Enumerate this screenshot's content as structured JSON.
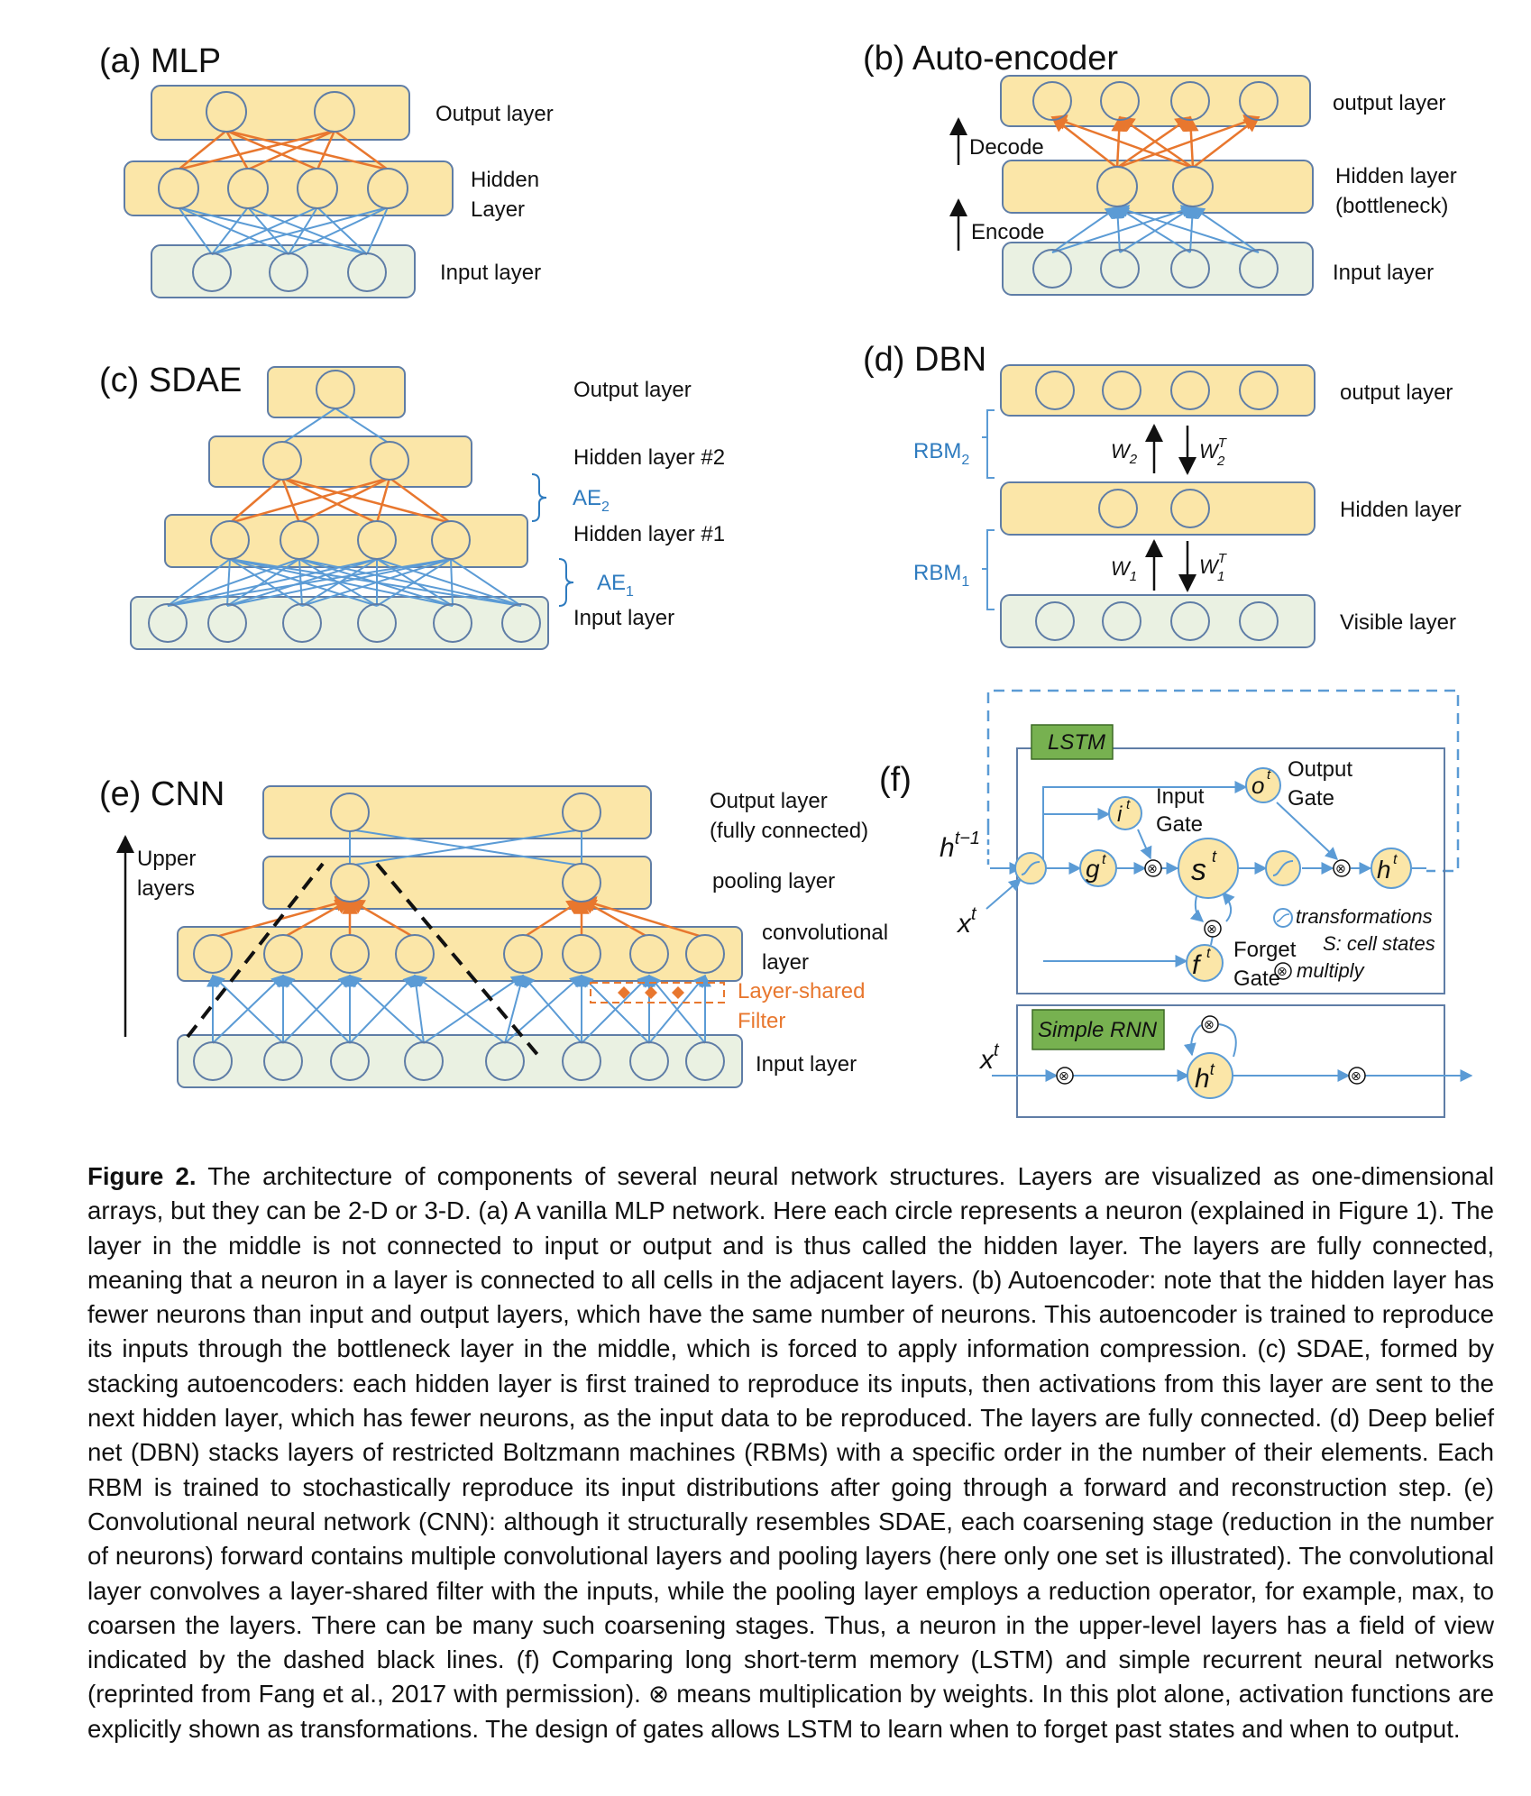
{
  "panels": {
    "a": {
      "title": "(a) MLP",
      "output": "Output layer",
      "hidden1": "Hidden",
      "hidden2": "Layer",
      "input": "Input layer"
    },
    "b": {
      "title": "(b) Auto-encoder",
      "output": "output layer",
      "hidden1": "Hidden layer",
      "hidden2": "(bottleneck)",
      "input": "Input layer",
      "decode": "Decode",
      "encode": "Encode"
    },
    "c": {
      "title": "(c)  SDAE",
      "output": "Output layer",
      "hidden2": "Hidden layer #2",
      "hidden1": "Hidden layer #1",
      "input": "Input layer",
      "ae2": "AE",
      "ae2_sub": "2",
      "ae1": "AE",
      "ae1_sub": "1"
    },
    "d": {
      "title": "(d) DBN",
      "output": "output layer",
      "hidden": "Hidden layer",
      "visible": "Visible layer",
      "rbm2": "RBM",
      "rbm2_sub": "2",
      "rbm1": "RBM",
      "rbm1_sub": "1",
      "w2": "W",
      "w2_sub": "2",
      "w2t": "W",
      "w2t_sub": "2",
      "w2t_sup": "T",
      "w1": "W",
      "w1_sub": "1",
      "w1t": "W",
      "w1t_sub": "1",
      "w1t_sup": "T"
    },
    "e": {
      "title": "(e)  CNN",
      "output1": "Output layer",
      "output2": "(fully connected)",
      "pooling": "pooling layer",
      "conv1": "convolutional",
      "conv2": "layer",
      "filter1": "Layer-shared",
      "filter2": "Filter",
      "input": "Input layer",
      "upper1": "Upper",
      "upper2": "layers"
    },
    "f": {
      "title": "(f)",
      "lstm": "LSTM",
      "rnn": "Simple RNN",
      "input_gate1": "Input",
      "input_gate2": "Gate",
      "output_gate1": "Output",
      "output_gate2": "Gate",
      "forget_gate1": "Forget",
      "forget_gate2": "Gate",
      "legend_transform": "transformations",
      "legend_cell": "S: cell states",
      "legend_multiply": "multiply",
      "h_prev": "h",
      "h_prev_sup": "t−1",
      "x": "x",
      "x_sup": "t",
      "h": "h",
      "h_sup": "t",
      "i": "i",
      "o": "o",
      "g": "g",
      "s": "s",
      "f": "f",
      "sup_t": "t",
      "mult": "⊗"
    }
  },
  "caption": {
    "label": "Figure 2.",
    "text": " The architecture of components of several neural network structures. Layers are visualized as one-dimensional arrays, but they can be 2-D or 3-D. (a) A vanilla MLP network. Here each circle represents a neuron (explained in Figure 1). The layer in the middle is not connected to input or output and is thus called the hidden layer. The layers are fully connected, meaning that a neuron in a layer is connected to all cells in the adjacent layers. (b) Autoencoder: note that the hidden layer has fewer neurons than input and output layers, which have the same number of neurons. This autoencoder is trained to reproduce its inputs through the bottleneck layer in the middle, which is forced to apply information compression. (c) SDAE, formed by stacking autoencoders: each hidden layer is first trained to reproduce its inputs, then activations from this layer are sent to the next hidden layer, which has fewer neurons, as the input data to be reproduced. The layers are fully connected. (d) Deep belief net (DBN) stacks layers of restricted Boltzmann machines (RBMs) with a specific order in the number of their elements. Each RBM is trained to stochastically reproduce its input distributions after going through a forward and reconstruction step. (e) Convolutional neural network (CNN): although it structurally resembles SDAE, each coarsening stage (reduction in the number of neurons) forward contains multiple convolutional layers and pooling layers (here only one set is illustrated). The convolutional layer convolves a layer-shared filter with the inputs, while the pooling layer employs a reduction operator, for example, max, to coarsen the layers. There can be many such coarsening stages. Thus, a neuron in the upper-level layers has a field of view indicated by the dashed black lines. (f) Comparing long short-term memory (LSTM) and simple recurrent neural networks (reprinted from Fang et al., 2017 with permission). ⊗ means multiplication by weights. In this plot alone, activation functions are explicitly shown as transformations. The design of gates allows LSTM to learn when to forget past states and when to output."
  },
  "colors": {
    "yellow_layer": "#fbe6a8",
    "green_layer": "#eaf1e2",
    "blue_edge": "#5b9bd5",
    "orange_edge": "#e8772e",
    "lstm_tag": "#77b150"
  }
}
